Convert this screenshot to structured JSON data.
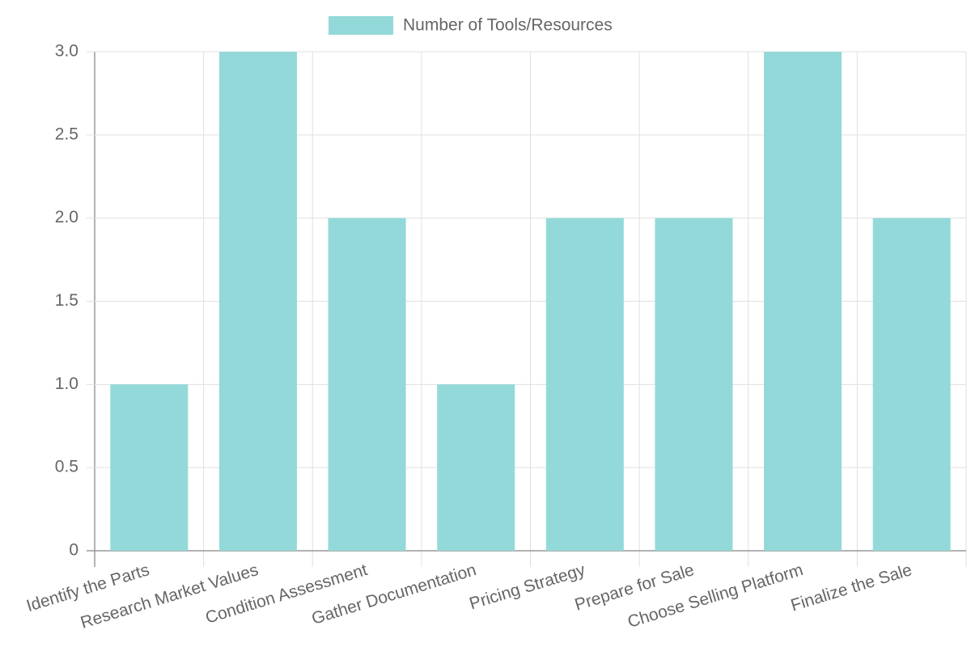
{
  "chart_data": {
    "type": "bar",
    "categories": [
      "Identify the Parts",
      "Research Market Values",
      "Condition Assessment",
      "Gather Documentation",
      "Pricing Strategy",
      "Prepare for Sale",
      "Choose Selling Platform",
      "Finalize the Sale"
    ],
    "series": [
      {
        "name": "Number of Tools/Resources",
        "color": "#93d9d9",
        "values": [
          1,
          3,
          2,
          1,
          2,
          2,
          3,
          2
        ]
      }
    ],
    "ylim": [
      0,
      3
    ],
    "yticks": [
      0,
      0.5,
      {
        "value": 1,
        "label": "1.0"
      },
      1.5,
      {
        "value": 2,
        "label": "2.0"
      },
      2.5,
      {
        "value": 3,
        "label": "3.0"
      }
    ],
    "grid": true,
    "legend": "top"
  }
}
